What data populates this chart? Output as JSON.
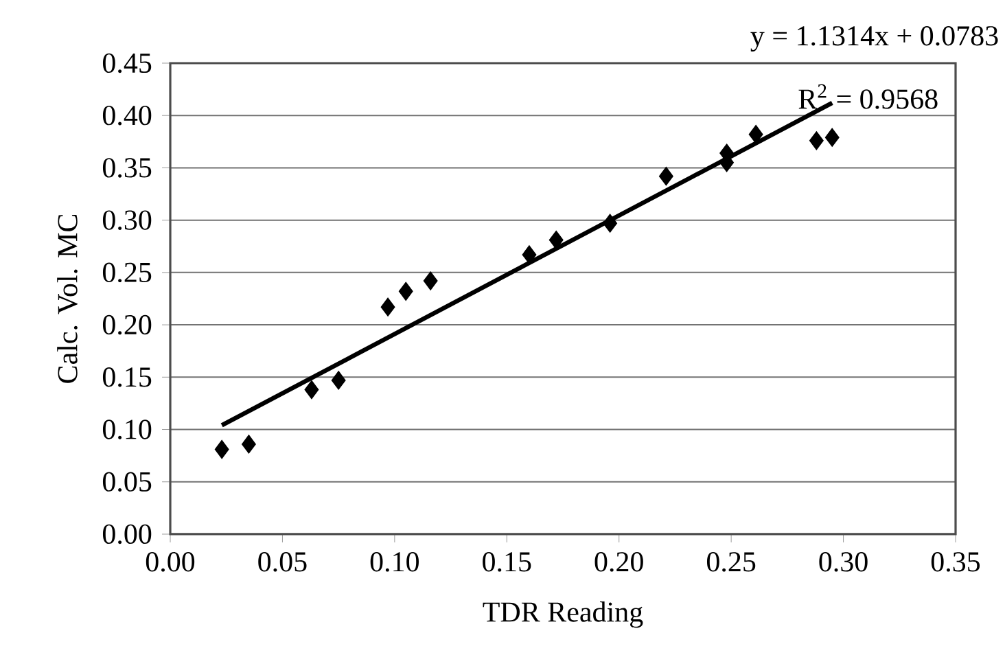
{
  "chart_data": {
    "type": "scatter",
    "xlabel": "TDR Reading",
    "ylabel": "Calc. Vol. MC",
    "annotations": [
      "y = 1.1314x + 0.0783",
      "R$^{2}$ = 0.9568"
    ],
    "xlim": [
      0,
      0.35
    ],
    "xticks": [
      {
        "value": 0,
        "label": "0.00"
      },
      0.05,
      {
        "value": 0.1,
        "label": "0.10"
      },
      0.15,
      {
        "value": 0.2,
        "label": "0.20"
      },
      0.25,
      {
        "value": 0.3,
        "label": "0.30"
      },
      0.35
    ],
    "ylim": [
      0,
      0.45
    ],
    "yticks": [
      {
        "value": 0,
        "label": "0.00"
      },
      0.05,
      {
        "value": 0.1,
        "label": "0.10"
      },
      0.15,
      {
        "value": 0.2,
        "label": "0.20"
      },
      0.25,
      {
        "value": 0.3,
        "label": "0.30"
      },
      0.35,
      {
        "value": 0.4,
        "label": "0.40"
      },
      0.45
    ],
    "grid": "y",
    "marker": "diamond",
    "series": [
      {
        "color": "#000000",
        "x": [
          0.023,
          0.035,
          0.063,
          0.075,
          0.097,
          0.105,
          0.116,
          0.16,
          0.172,
          0.196,
          0.221,
          0.248,
          0.248,
          0.261,
          0.288,
          0.295
        ],
        "values": [
          0.081,
          0.086,
          0.138,
          0.147,
          0.217,
          0.232,
          0.242,
          0.267,
          0.281,
          0.297,
          0.342,
          0.355,
          0.364,
          0.382,
          0.376,
          0.379
        ]
      },
      {
        "type": "line",
        "color": "#000000",
        "marker": "none",
        "x": [
          0.023,
          0.295
        ],
        "values": [
          0.104,
          0.412
        ]
      }
    ]
  }
}
